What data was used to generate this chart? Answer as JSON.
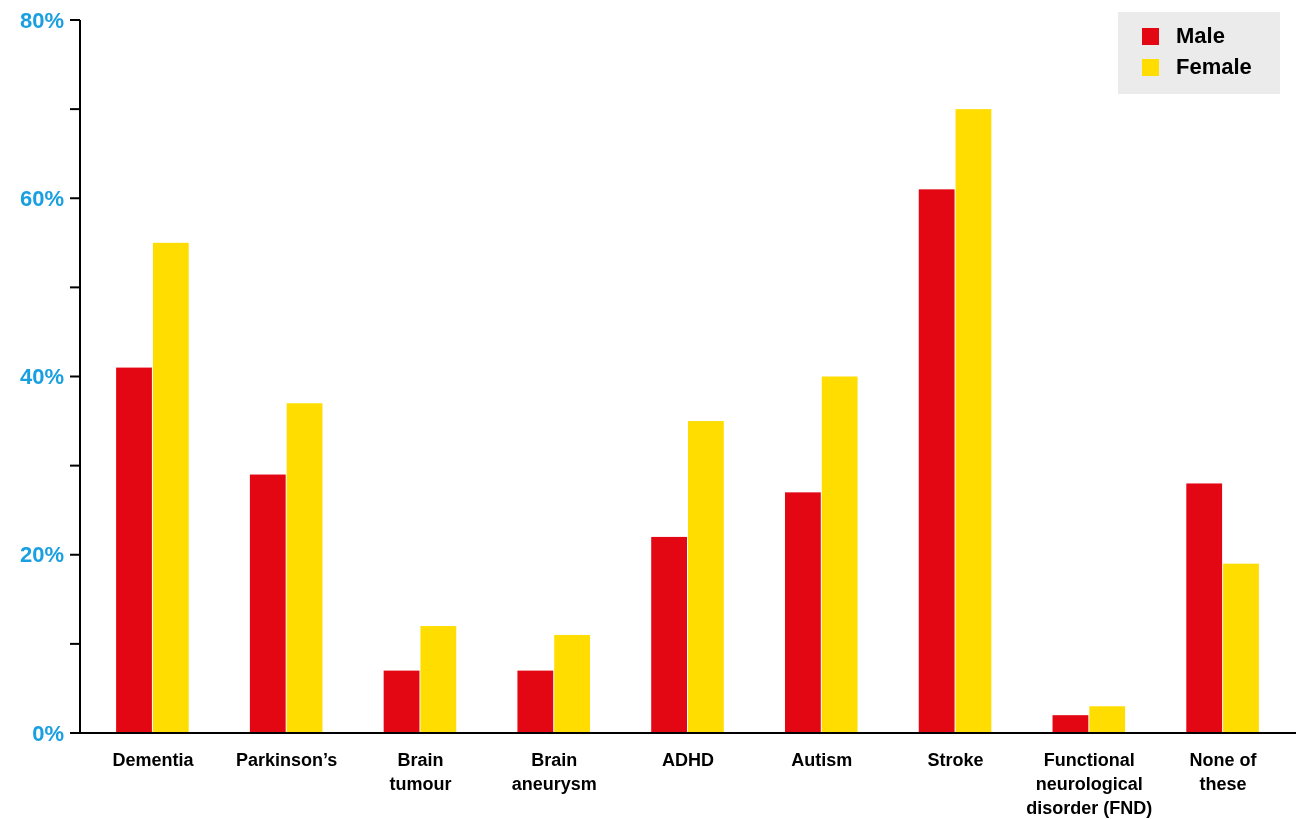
{
  "chart_data": {
    "type": "bar",
    "categories": [
      "Dementia",
      "Parkinson’s",
      "Brain\ntumour",
      "Brain\naneurysm",
      "ADHD",
      "Autism",
      "Stroke",
      "Functional\nneurological\ndisorder (FND)",
      "None of\nthese"
    ],
    "series": [
      {
        "name": "Male",
        "color": "#e30613",
        "values": [
          41,
          29,
          7,
          7,
          22,
          27,
          61,
          2,
          28
        ]
      },
      {
        "name": "Female",
        "color": "#ffdd00",
        "values": [
          55,
          37,
          12,
          11,
          35,
          40,
          70,
          3,
          19
        ]
      }
    ],
    "ylim": [
      0,
      80
    ],
    "yticks": [
      {
        "value": 0,
        "label": "0%"
      },
      {
        "value": 10,
        "label": null
      },
      {
        "value": 20,
        "label": "20%"
      },
      {
        "value": 30,
        "label": null
      },
      {
        "value": 40,
        "label": "40%"
      },
      {
        "value": 50,
        "label": null
      },
      {
        "value": 60,
        "label": "60%"
      },
      {
        "value": 70,
        "label": null
      },
      {
        "value": 80,
        "label": "80%"
      }
    ],
    "legend": "top right",
    "grid": false
  }
}
